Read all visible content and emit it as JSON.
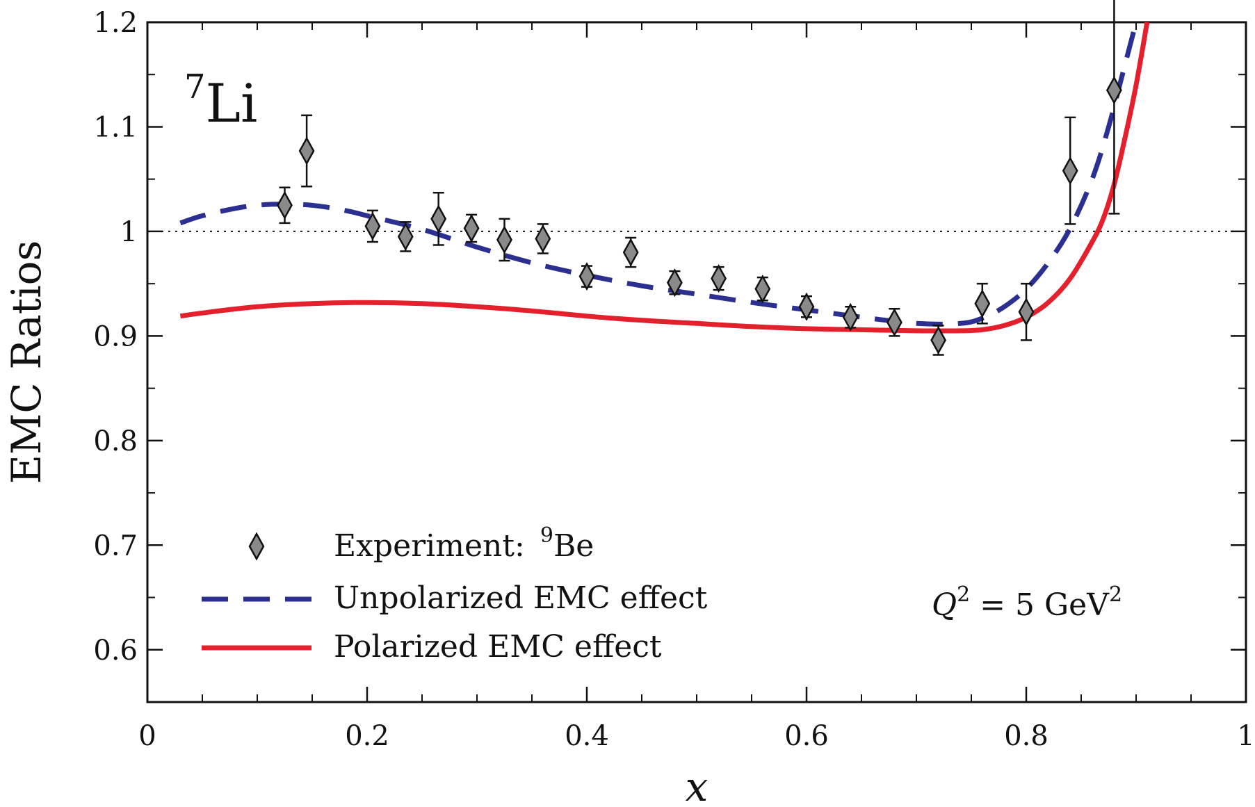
{
  "chart_data": {
    "type": "line",
    "xlabel": "x",
    "ylabel": "EMC Ratios",
    "xlim": [
      0,
      1
    ],
    "ylim": [
      0.55,
      1.2
    ],
    "x_ticks": [
      0,
      0.2,
      0.4,
      0.6,
      0.8,
      1
    ],
    "x_tick_labels": [
      "0",
      "0.2",
      "0.4",
      "0.6",
      "0.8",
      "1"
    ],
    "y_ticks": [
      0.6,
      0.7,
      0.8,
      0.9,
      1.0,
      1.1,
      1.2
    ],
    "y_tick_labels": [
      "0.6",
      "0.7",
      "0.8",
      "0.9",
      "1",
      "1.1",
      "1.2"
    ],
    "reference_line": 1.0,
    "nucleus": {
      "mass": "7",
      "symbol": "Li"
    },
    "annotation": {
      "q": "Q",
      "exp": "2",
      "rest": " = 5 GeV",
      "exp2": "2"
    },
    "legend": {
      "position": "bottom-left",
      "experiment": {
        "label": "Experiment:",
        "mass": "9",
        "symbol": "Be"
      },
      "unpolarized": "Unpolarized EMC effect",
      "polarized": "Polarized EMC effect"
    },
    "colors": {
      "unpolarized": "#2b2f8f",
      "polarized": "#e3202c",
      "marker": "#8a8a8a"
    },
    "experiment": [
      {
        "x": 0.125,
        "y": 1.025,
        "err": 0.017
      },
      {
        "x": 0.145,
        "y": 1.077,
        "err": 0.034
      },
      {
        "x": 0.205,
        "y": 1.005,
        "err": 0.015
      },
      {
        "x": 0.235,
        "y": 0.995,
        "err": 0.014
      },
      {
        "x": 0.265,
        "y": 1.012,
        "err": 0.025
      },
      {
        "x": 0.295,
        "y": 1.003,
        "err": 0.013
      },
      {
        "x": 0.325,
        "y": 0.992,
        "err": 0.02
      },
      {
        "x": 0.36,
        "y": 0.993,
        "err": 0.014
      },
      {
        "x": 0.4,
        "y": 0.957,
        "err": 0.01
      },
      {
        "x": 0.44,
        "y": 0.98,
        "err": 0.014
      },
      {
        "x": 0.48,
        "y": 0.951,
        "err": 0.011
      },
      {
        "x": 0.52,
        "y": 0.955,
        "err": 0.011
      },
      {
        "x": 0.56,
        "y": 0.945,
        "err": 0.011
      },
      {
        "x": 0.6,
        "y": 0.928,
        "err": 0.01
      },
      {
        "x": 0.64,
        "y": 0.918,
        "err": 0.01
      },
      {
        "x": 0.68,
        "y": 0.913,
        "err": 0.013
      },
      {
        "x": 0.72,
        "y": 0.896,
        "err": 0.014
      },
      {
        "x": 0.76,
        "y": 0.931,
        "err": 0.019
      },
      {
        "x": 0.8,
        "y": 0.923,
        "err": 0.027
      },
      {
        "x": 0.84,
        "y": 1.058,
        "err": 0.051
      },
      {
        "x": 0.88,
        "y": 1.135,
        "err": 0.118
      }
    ],
    "series": [
      {
        "key": "unpolarized",
        "style": "dashed",
        "x": [
          0.03,
          0.05,
          0.08,
          0.1,
          0.12,
          0.15,
          0.18,
          0.2,
          0.25,
          0.3,
          0.35,
          0.4,
          0.45,
          0.5,
          0.55,
          0.6,
          0.65,
          0.7,
          0.74,
          0.76,
          0.78,
          0.8,
          0.82,
          0.84,
          0.86,
          0.875,
          0.89,
          0.9
        ],
        "y": [
          1.008,
          1.015,
          1.022,
          1.025,
          1.026,
          1.025,
          1.02,
          1.015,
          1.002,
          0.985,
          0.97,
          0.958,
          0.948,
          0.94,
          0.932,
          0.925,
          0.918,
          0.912,
          0.912,
          0.917,
          0.928,
          0.945,
          0.97,
          1.003,
          1.05,
          1.1,
          1.16,
          1.2
        ]
      },
      {
        "key": "polarized",
        "style": "solid",
        "x": [
          0.03,
          0.05,
          0.1,
          0.15,
          0.2,
          0.25,
          0.3,
          0.35,
          0.4,
          0.45,
          0.5,
          0.55,
          0.6,
          0.65,
          0.7,
          0.74,
          0.76,
          0.78,
          0.8,
          0.82,
          0.84,
          0.86,
          0.87,
          0.88,
          0.89,
          0.9,
          0.91
        ],
        "y": [
          0.919,
          0.922,
          0.928,
          0.931,
          0.932,
          0.931,
          0.928,
          0.924,
          0.919,
          0.915,
          0.912,
          0.909,
          0.907,
          0.906,
          0.905,
          0.905,
          0.906,
          0.91,
          0.918,
          0.932,
          0.955,
          0.99,
          1.012,
          1.045,
          1.09,
          1.14,
          1.2
        ]
      }
    ]
  }
}
